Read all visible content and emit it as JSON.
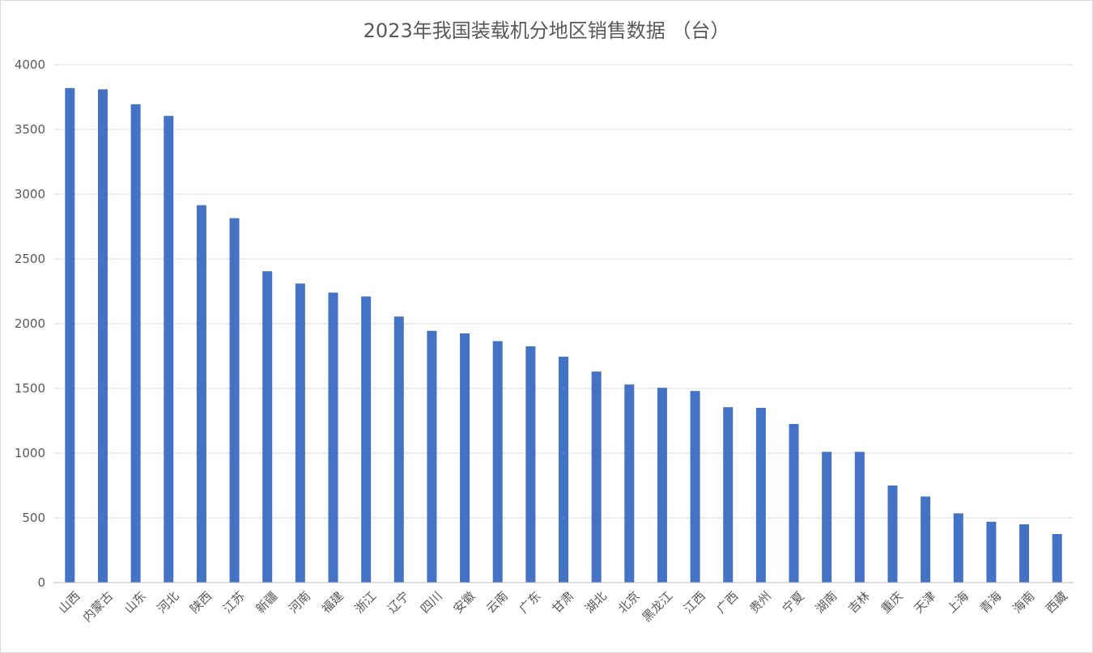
{
  "chart_data": {
    "type": "bar",
    "title": "2023年我国装载机分地区销售数据 （台）",
    "xlabel": "",
    "ylabel": "",
    "ylim": [
      0,
      4000
    ],
    "yticks": [
      0,
      500,
      1000,
      1500,
      2000,
      2500,
      3000,
      3500,
      4000
    ],
    "grid": true,
    "legend": "none",
    "bar_color": "#4472c4",
    "categories": [
      "山西",
      "内蒙古",
      "山东",
      "河北",
      "陕西",
      "江苏",
      "新疆",
      "河南",
      "福建",
      "浙江",
      "辽宁",
      "四川",
      "安徽",
      "云南",
      "广东",
      "甘肃",
      "湖北",
      "北京",
      "黑龙江",
      "江西",
      "广西",
      "贵州",
      "宁夏",
      "湖南",
      "吉林",
      "重庆",
      "天津",
      "上海",
      "青海",
      "海南",
      "西藏"
    ],
    "values": [
      3820,
      3810,
      3695,
      3605,
      2915,
      2815,
      2405,
      2310,
      2240,
      2210,
      2055,
      1945,
      1925,
      1865,
      1825,
      1745,
      1630,
      1530,
      1505,
      1480,
      1355,
      1350,
      1225,
      1010,
      1010,
      750,
      665,
      535,
      470,
      450,
      375
    ]
  }
}
